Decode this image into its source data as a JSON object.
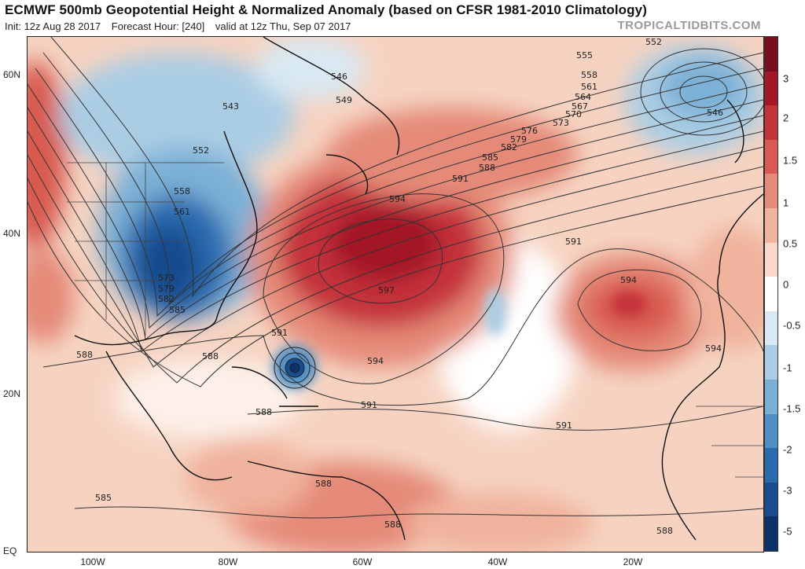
{
  "header": {
    "title": "ECMWF 500mb Geopotential Height & Normalized Anomaly (based on CFSR 1981-2010 Climatology)",
    "init": "Init: 12z Aug 28 2017",
    "forecast_hour": "Forecast Hour: [240]",
    "valid": "valid at 12z Thu, Sep 07 2017",
    "brand": "TROPICALTIDBITS.COM"
  },
  "axes": {
    "lat_labels": [
      "60N",
      "40N",
      "20N",
      "EQ"
    ],
    "lon_labels": [
      "100W",
      "80W",
      "60W",
      "40W",
      "20W"
    ]
  },
  "colorbar": {
    "labels": [
      "3",
      "2",
      "1.5",
      "1",
      "0.5",
      "0",
      "-0.5",
      "-1",
      "-1.5",
      "-2",
      "-3",
      "-5"
    ],
    "colors": [
      "#7a0e1e",
      "#a31726",
      "#c4323a",
      "#d85a50",
      "#e58a78",
      "#f0b39d",
      "#f8d8c8",
      "#ffffff",
      "#d9e9f3",
      "#aacde4",
      "#7bb0d6",
      "#4f8fc4",
      "#2a6aaf",
      "#174c8f",
      "#0d316a"
    ]
  },
  "map": {
    "high_labels": [
      {
        "label": "597",
        "lon": -57,
        "lat": 37
      },
      {
        "label": "594",
        "lon": -21,
        "lat": 33
      }
    ],
    "low_center_labels": [
      {
        "label": "546",
        "lon": -12,
        "lat": 56
      },
      {
        "label": "543",
        "lon": -83,
        "lat": 57
      }
    ],
    "contour_labels": [
      "543",
      "546",
      "549",
      "552",
      "555",
      "558",
      "561",
      "564",
      "567",
      "570",
      "573",
      "576",
      "579",
      "582",
      "585",
      "588",
      "591",
      "594",
      "597"
    ]
  }
}
